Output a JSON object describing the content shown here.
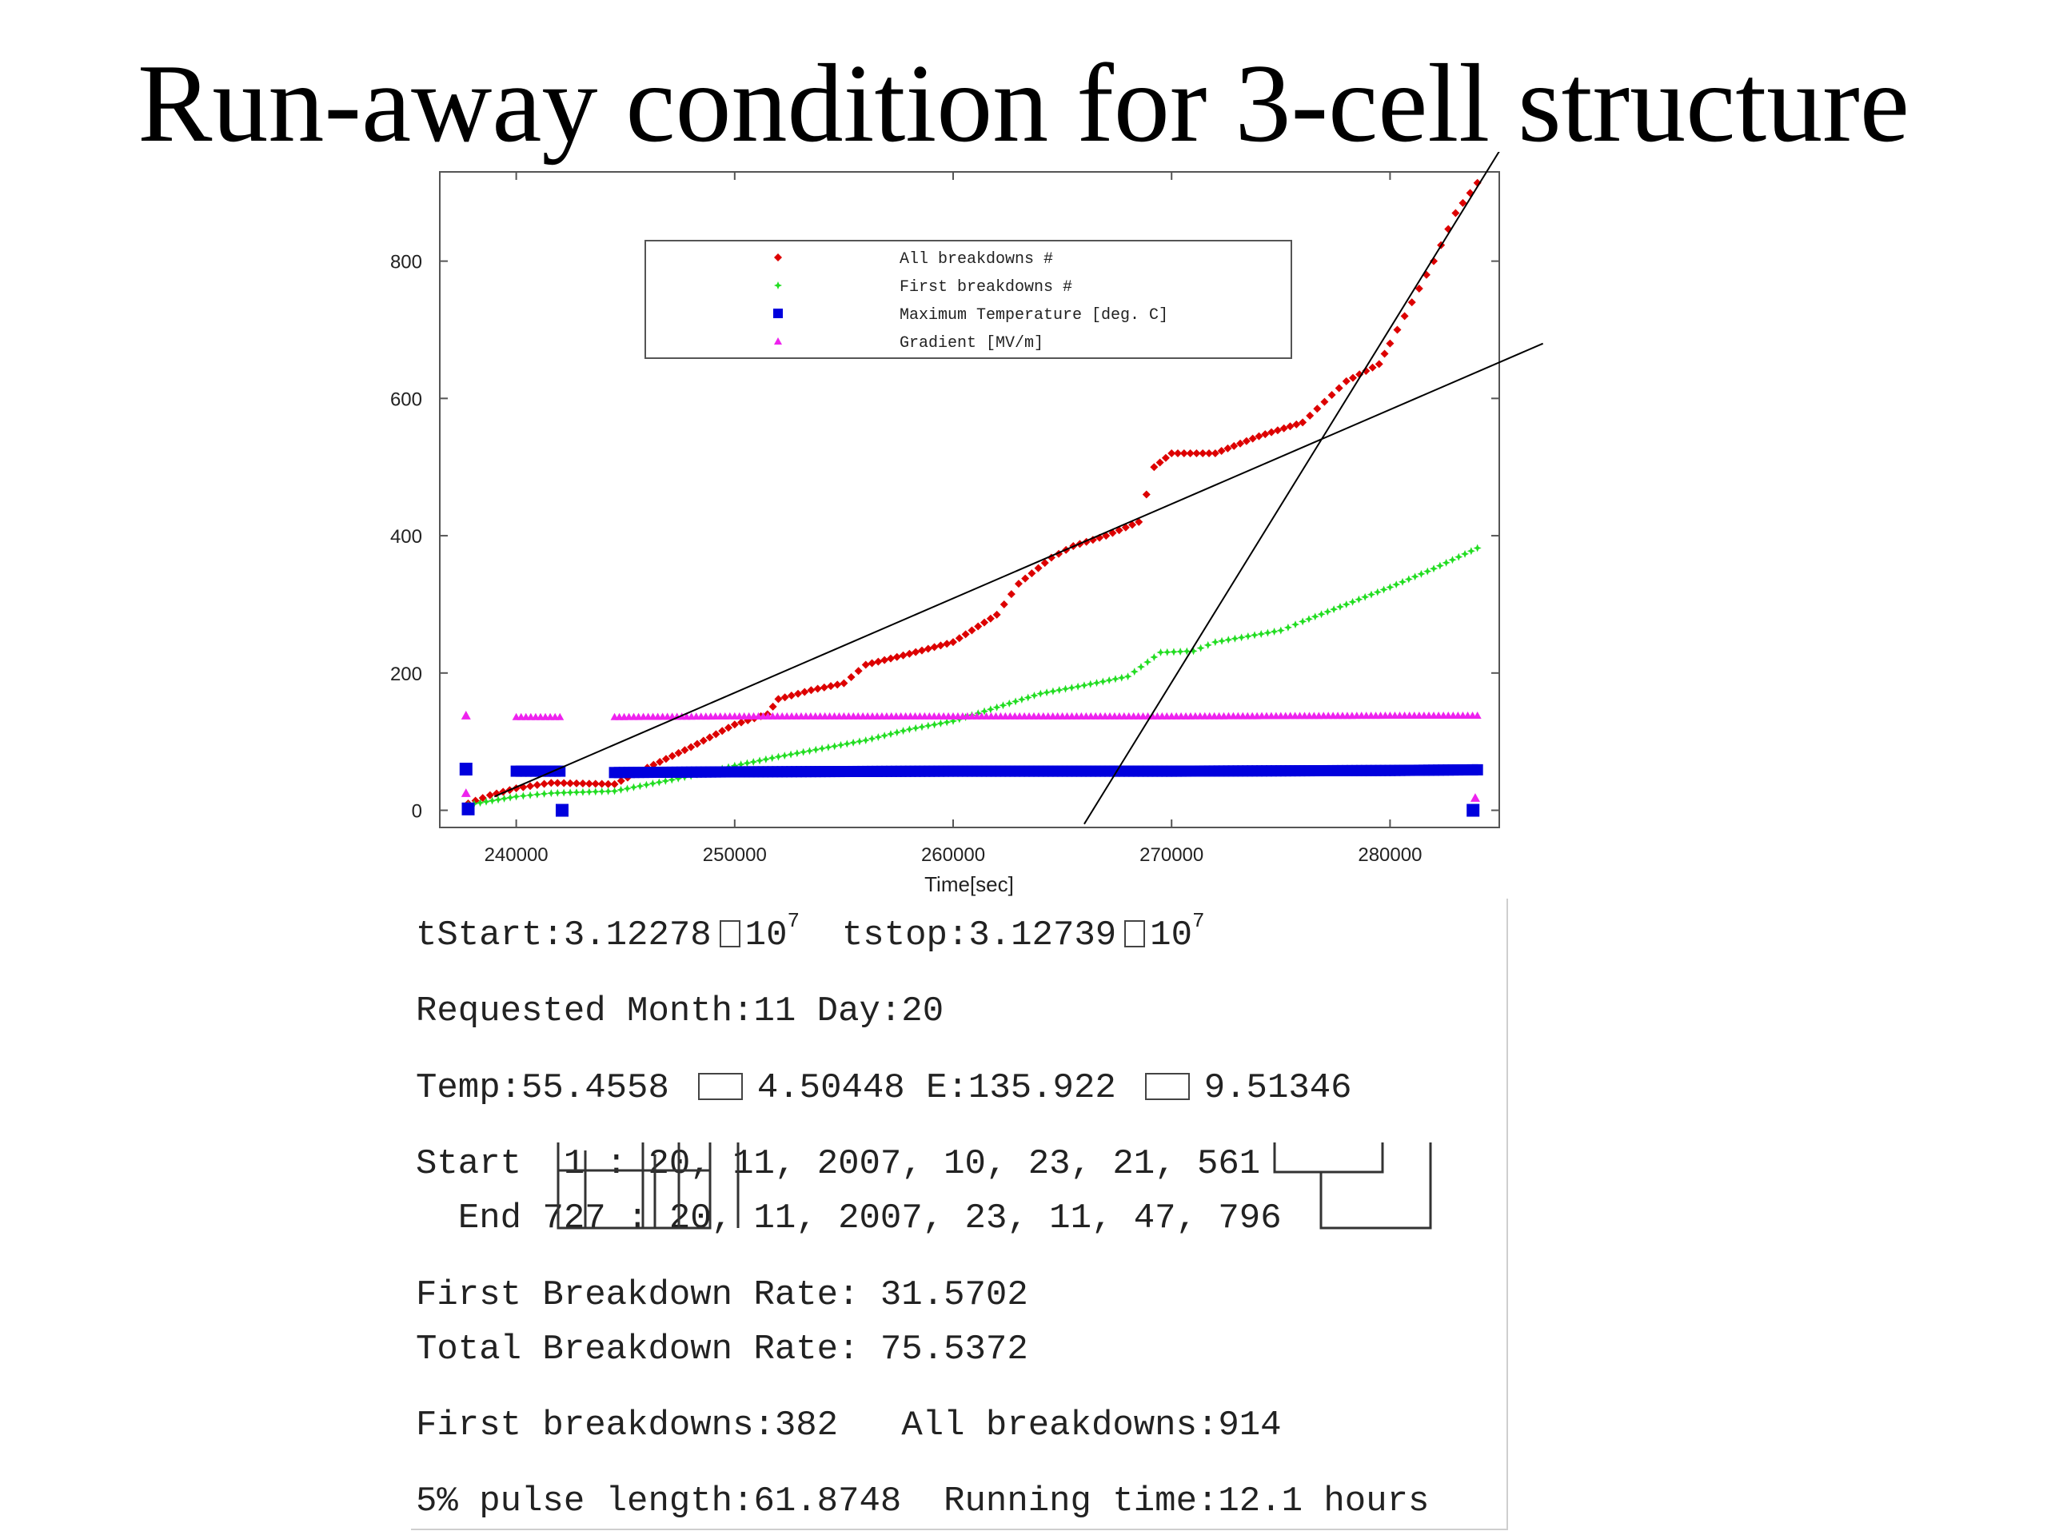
{
  "slide_title": "Run-away condition for 3-cell structure",
  "chart_data": {
    "type": "scatter",
    "title": "",
    "xlabel": "Time[sec]",
    "ylabel": "",
    "xlim": [
      236500,
      285000
    ],
    "ylim": [
      -25,
      930
    ],
    "x_ticks": [
      "240000",
      "250000",
      "260000",
      "270000",
      "280000"
    ],
    "y_ticks": [
      "0",
      "200",
      "400",
      "600",
      "800"
    ],
    "legend_position": "top-center",
    "grid": false,
    "series": [
      {
        "name": "All breakdowns #",
        "color": "#dd0000",
        "marker": "diamond",
        "points": [
          [
            237800,
            10
          ],
          [
            238800,
            22
          ],
          [
            240000,
            32
          ],
          [
            241600,
            40
          ],
          [
            244500,
            38
          ],
          [
            246000,
            62
          ],
          [
            248000,
            92
          ],
          [
            250000,
            125
          ],
          [
            251500,
            140
          ],
          [
            252000,
            162
          ],
          [
            253500,
            175
          ],
          [
            255000,
            185
          ],
          [
            256000,
            212
          ],
          [
            258000,
            228
          ],
          [
            260000,
            245
          ],
          [
            262000,
            285
          ],
          [
            263000,
            330
          ],
          [
            264500,
            368
          ],
          [
            265500,
            385
          ],
          [
            267000,
            400
          ],
          [
            268500,
            420
          ],
          [
            269200,
            500
          ],
          [
            270000,
            520
          ],
          [
            272000,
            520
          ],
          [
            274000,
            545
          ],
          [
            276000,
            565
          ],
          [
            277000,
            595
          ],
          [
            278000,
            625
          ],
          [
            279500,
            650
          ],
          [
            280000,
            680
          ],
          [
            281000,
            740
          ],
          [
            282000,
            800
          ],
          [
            283000,
            870
          ],
          [
            284000,
            914
          ]
        ]
      },
      {
        "name": "First breakdowns #",
        "color": "#22dd22",
        "marker": "star",
        "points": [
          [
            237800,
            8
          ],
          [
            240000,
            20
          ],
          [
            241600,
            25
          ],
          [
            244500,
            28
          ],
          [
            248000,
            50
          ],
          [
            250000,
            65
          ],
          [
            252000,
            78
          ],
          [
            256000,
            102
          ],
          [
            258000,
            118
          ],
          [
            260000,
            130
          ],
          [
            262000,
            150
          ],
          [
            264000,
            170
          ],
          [
            266000,
            182
          ],
          [
            268000,
            195
          ],
          [
            269500,
            230
          ],
          [
            271000,
            232
          ],
          [
            272000,
            245
          ],
          [
            275000,
            262
          ],
          [
            276000,
            275
          ],
          [
            278000,
            300
          ],
          [
            280000,
            325
          ],
          [
            282000,
            352
          ],
          [
            284000,
            382
          ]
        ]
      },
      {
        "name": "Maximum Temperature [deg. C]",
        "color": "#0000dd",
        "marker": "square",
        "points": [
          [
            237700,
            60
          ],
          [
            240000,
            57
          ],
          [
            242000,
            57
          ],
          [
            244500,
            55
          ],
          [
            250000,
            56
          ],
          [
            260000,
            57
          ],
          [
            270000,
            57
          ],
          [
            280000,
            58
          ],
          [
            284000,
            59
          ],
          [
            237800,
            2
          ],
          [
            242100,
            0
          ],
          [
            283800,
            0
          ]
        ]
      },
      {
        "name": "Gradient [MV/m]",
        "color": "#ee22ee",
        "marker": "triangle",
        "points": [
          [
            237700,
            138
          ],
          [
            240000,
            136
          ],
          [
            242000,
            136
          ],
          [
            244500,
            136
          ],
          [
            250000,
            137
          ],
          [
            260000,
            137
          ],
          [
            270000,
            137
          ],
          [
            280000,
            138
          ],
          [
            284000,
            138
          ],
          [
            237700,
            25
          ],
          [
            283900,
            18
          ]
        ]
      }
    ],
    "fit_lines": [
      {
        "x": [
          239000,
          287000
        ],
        "y": [
          20,
          680
        ]
      },
      {
        "x": [
          266000,
          285000
        ],
        "y": [
          -20,
          960
        ]
      }
    ]
  },
  "readout": {
    "tstart_label": "tStart:3.12278",
    "tstart_exp": "7",
    "tstop_label": "tstop:3.12739",
    "tstop_exp": "7",
    "times_ten": "10",
    "requested": "Requested Month:11 Day:20",
    "temp": "Temp:55.4558",
    "temp_dev": "4.50448",
    "field": "E:135.922",
    "field_dev": "9.51346",
    "start_label": "Start",
    "start_a": "1",
    "start_colon": ":",
    "start_b": "20",
    "start_c": "11",
    "start_rest": ", 2007, 10, 23, 21, 561",
    "end_label": "End",
    "end_a": "727",
    "end_colon": ":",
    "end_b": "20",
    "end_c": "11",
    "end_rest": ", 2007, 23, 11, 47, 796",
    "first_rate": "First Breakdown Rate: 31.5702",
    "total_rate": "Total Breakdown Rate: 75.5372",
    "first_count": "First breakdowns:382",
    "all_count": "All breakdowns:914",
    "pulse": "5% pulse length:61.8748",
    "running": "Running time:12.1 hours"
  }
}
